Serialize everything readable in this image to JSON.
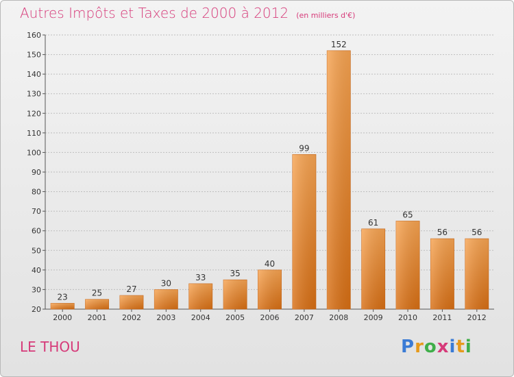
{
  "title": "Autres Impôts et Taxes de 2000 à 2012",
  "subtitle": "(en milliers d'€)",
  "commune": "LE THOU",
  "logo": {
    "letters": [
      "P",
      "r",
      "o",
      "x",
      "i",
      "t",
      "i"
    ],
    "colors": [
      "#3a7bd5",
      "#e69a1c",
      "#3fae49",
      "#d63a79",
      "#3a7bd5",
      "#e69a1c",
      "#3fae49"
    ]
  },
  "chart_data": {
    "type": "bar",
    "title": "Autres Impôts et Taxes de 2000 à 2012",
    "subtitle": "(en milliers d'€)",
    "xlabel": "",
    "ylabel": "",
    "categories": [
      "2000",
      "2001",
      "2002",
      "2003",
      "2004",
      "2005",
      "2006",
      "2007",
      "2008",
      "2009",
      "2010",
      "2011",
      "2012"
    ],
    "values": [
      23,
      25,
      27,
      30,
      33,
      35,
      40,
      99,
      152,
      61,
      65,
      56,
      56
    ],
    "ylim": [
      20,
      160
    ],
    "yticks": [
      20,
      30,
      40,
      50,
      60,
      70,
      80,
      90,
      100,
      110,
      120,
      130,
      140,
      150,
      160
    ],
    "grid": true,
    "legend": "none",
    "bar_color": "#f0892a"
  }
}
